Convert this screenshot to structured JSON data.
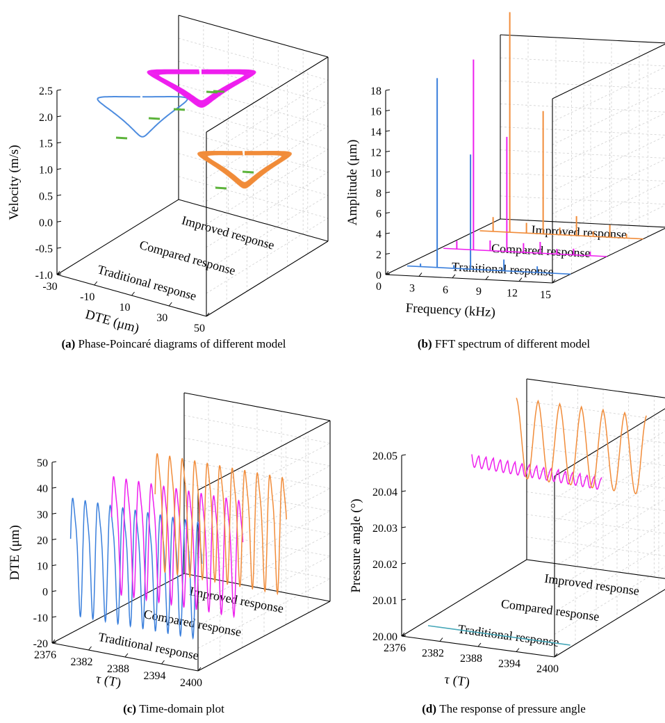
{
  "colors": {
    "traditional": "#3a7fdc",
    "compared": "#ee1fee",
    "improved": "#f18c3a",
    "poincare": "#5cb33a",
    "pressure_traditional": "#46a7b8"
  },
  "chart_data": [
    {
      "id": "a",
      "type": "line",
      "caption_label": "(a)",
      "caption_text": "Phase-Poincaré diagrams of different model",
      "xlabel": "DTE (μm)",
      "ylabel": "Velocity (m/s)",
      "x_ticks": [
        "-30",
        "-10",
        "10",
        "30",
        "50"
      ],
      "y_ticks": [
        "-1.0",
        "-0.5",
        "0.0",
        "0.5",
        "1.0",
        "1.5",
        "2.0",
        "2.5"
      ],
      "ylim": [
        -1.0,
        2.5
      ],
      "categories": [
        "Traditional response",
        "Compared response",
        "Improved response"
      ],
      "series": [
        {
          "name": "Traditional response",
          "color": "#3a7fdc"
        },
        {
          "name": "Compared response",
          "color": "#ee1fee"
        },
        {
          "name": "Improved response",
          "color": "#f18c3a"
        }
      ],
      "poincare_color": "#5cb33a"
    },
    {
      "id": "b",
      "type": "bar",
      "caption_label": "(b)",
      "caption_text": "FFT spectrum of different model",
      "xlabel": "Frequency (kHz)",
      "ylabel": "Amplitude (μm)",
      "x_ticks": [
        "0",
        "3",
        "6",
        "9",
        "12",
        "15"
      ],
      "y_ticks": [
        "0",
        "2",
        "4",
        "6",
        "8",
        "10",
        "12",
        "14",
        "16",
        "18"
      ],
      "xlim": [
        0,
        15
      ],
      "ylim": [
        0,
        18
      ],
      "categories": [
        "Tranitional response",
        "Compared response",
        "Improved response"
      ],
      "series": [
        {
          "name": "Tranitional response",
          "color": "#3a7fdc",
          "peaks": [
            {
              "x": 3.0,
              "y": 18.5
            },
            {
              "x": 6.0,
              "y": 11.2
            },
            {
              "x": 9.0,
              "y": 1.1
            },
            {
              "x": 12.0,
              "y": 0.6
            },
            {
              "x": 1.5,
              "y": 0.3
            },
            {
              "x": 4.5,
              "y": 0.3
            }
          ]
        },
        {
          "name": "Compared response",
          "color": "#ee1fee",
          "peaks": [
            {
              "x": 3.0,
              "y": 18.6
            },
            {
              "x": 6.0,
              "y": 11.2
            },
            {
              "x": 1.5,
              "y": 0.8
            },
            {
              "x": 4.5,
              "y": 1.0
            },
            {
              "x": 7.5,
              "y": 0.9
            },
            {
              "x": 9.0,
              "y": 1.1
            },
            {
              "x": 10.5,
              "y": 0.5
            },
            {
              "x": 12.0,
              "y": 0.6
            },
            {
              "x": 13.5,
              "y": 0.4
            }
          ]
        },
        {
          "name": "Improved response",
          "color": "#f18c3a",
          "peaks": [
            {
              "x": 3.0,
              "y": 21.5
            },
            {
              "x": 6.0,
              "y": 12.0
            },
            {
              "x": 1.5,
              "y": 1.4
            },
            {
              "x": 4.5,
              "y": 1.0
            },
            {
              "x": 7.5,
              "y": 0.7
            },
            {
              "x": 9.0,
              "y": 1.9
            },
            {
              "x": 10.5,
              "y": 0.5
            },
            {
              "x": 12.0,
              "y": 1.2
            },
            {
              "x": 13.5,
              "y": 0.4
            }
          ]
        }
      ]
    },
    {
      "id": "c",
      "type": "line",
      "caption_label": "(c)",
      "caption_text": "Time-domain plot",
      "xlabel": "τ (T)",
      "ylabel": "DTE (μm)",
      "x_ticks": [
        "2376",
        "2382",
        "2388",
        "2394",
        "2400"
      ],
      "y_ticks": [
        "-20",
        "-10",
        "0",
        "10",
        "20",
        "30",
        "40",
        "50"
      ],
      "xlim": [
        2376,
        2400
      ],
      "ylim": [
        -20,
        50
      ],
      "categories": [
        "Traditional response",
        "Compared response",
        "Improved response"
      ],
      "series": [
        {
          "name": "Traditional response",
          "color": "#3a7fdc"
        },
        {
          "name": "Compared response",
          "color": "#ee1fee"
        },
        {
          "name": "Improved response",
          "color": "#f18c3a"
        }
      ]
    },
    {
      "id": "d",
      "type": "line",
      "caption_label": "(d)",
      "caption_text": "The response of pressure angle",
      "xlabel": "τ (T)",
      "ylabel": "Pressure angle (°)",
      "x_ticks": [
        "2376",
        "2382",
        "2388",
        "2394",
        "2400"
      ],
      "y_ticks": [
        "20.00",
        "20.01",
        "20.02",
        "20.03",
        "20.04",
        "20.05"
      ],
      "xlim": [
        2376,
        2400
      ],
      "ylim": [
        20.0,
        20.05
      ],
      "categories": [
        "Traditional response",
        "Compared response",
        "Improved response"
      ],
      "series": [
        {
          "name": "Traditional response",
          "color": "#46a7b8",
          "value": 20.0
        },
        {
          "name": "Compared response",
          "color": "#ee1fee"
        },
        {
          "name": "Improved response",
          "color": "#f18c3a"
        }
      ]
    }
  ]
}
